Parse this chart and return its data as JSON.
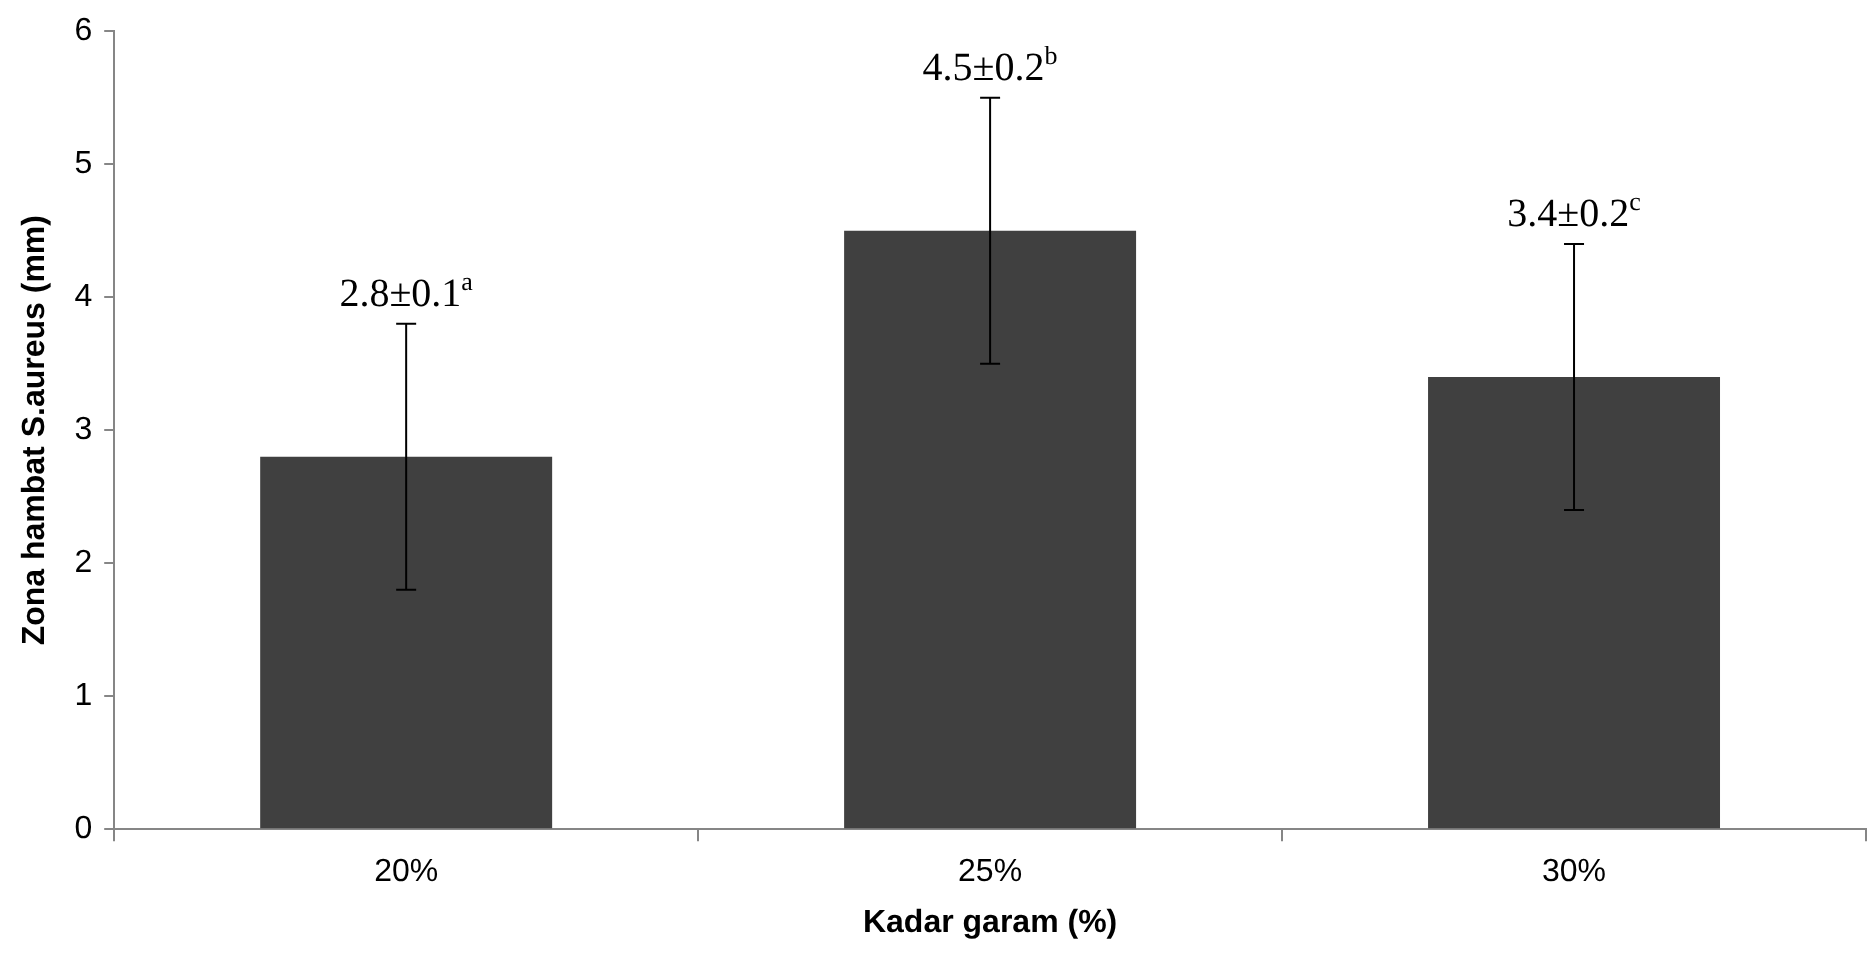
{
  "chart_data": {
    "type": "bar",
    "xlabel": "Kadar garam (%)",
    "ylabel": "Zona hambat S.aureus (mm)",
    "categories": [
      "20%",
      "25%",
      "30%"
    ],
    "values": [
      2.8,
      4.5,
      3.4
    ],
    "color": "#404040",
    "errors": [
      1,
      1,
      1
    ],
    "annotations": [
      {
        "text": "2.8±0.1$^{a}$",
        "x": "20%",
        "y": 3.8
      },
      {
        "text": "4.5±0.2$^{b}$",
        "x": "25%",
        "y": 5.5
      },
      {
        "text": "3.4±0.2$^{c}$",
        "x": "30%",
        "y": 4.4
      }
    ],
    "ylim": [
      0,
      6
    ],
    "yticks": [
      0,
      1,
      2,
      3,
      4,
      5,
      6
    ],
    "grid": false,
    "legend": false
  }
}
